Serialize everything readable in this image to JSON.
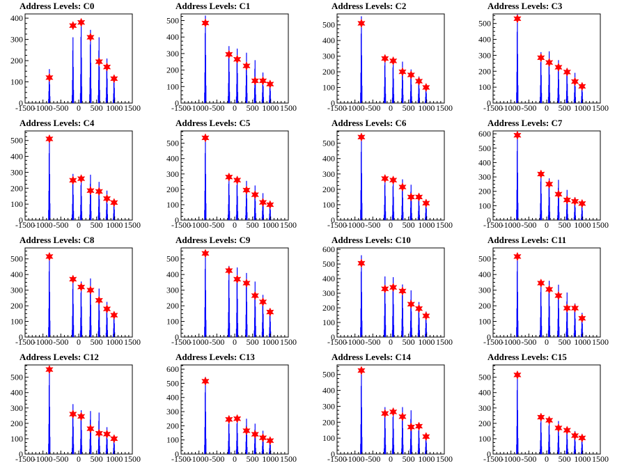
{
  "figure": {
    "background": "#ffffff",
    "hist_color": "#0000ff",
    "marker_color": "#ff0000"
  },
  "chart_data": [
    {
      "type": "bar",
      "title": "Address Levels: C0",
      "xlim": [
        -1500,
        1500
      ],
      "ylim": [
        0,
        420
      ],
      "xticks": [
        "-1500",
        "-1000",
        "-500",
        "0",
        "500",
        "1000",
        "1500"
      ],
      "yticks": [
        "0",
        "100",
        "200",
        "300",
        "400"
      ],
      "peaks": [
        {
          "x": -820,
          "y": 120,
          "h": 160
        },
        {
          "x": -160,
          "y": 365,
          "h": 310
        },
        {
          "x": 70,
          "y": 380,
          "h": 390
        },
        {
          "x": 330,
          "y": 310,
          "h": 345
        },
        {
          "x": 570,
          "y": 195,
          "h": 310
        },
        {
          "x": 790,
          "y": 170,
          "h": 210
        },
        {
          "x": 990,
          "y": 115,
          "h": 130
        }
      ]
    },
    {
      "type": "bar",
      "title": "Address Levels: C1",
      "xlim": [
        -1500,
        1500
      ],
      "ylim": [
        0,
        540
      ],
      "xticks": [
        "-1500",
        "-1000",
        "-500",
        "0",
        "500",
        "1000",
        "1500"
      ],
      "yticks": [
        "0",
        "100",
        "200",
        "300",
        "400",
        "500"
      ],
      "peaks": [
        {
          "x": -820,
          "y": 485,
          "h": 530
        },
        {
          "x": -160,
          "y": 295,
          "h": 345
        },
        {
          "x": 70,
          "y": 265,
          "h": 330
        },
        {
          "x": 330,
          "y": 225,
          "h": 305
        },
        {
          "x": 570,
          "y": 135,
          "h": 260
        },
        {
          "x": 790,
          "y": 135,
          "h": 185
        },
        {
          "x": 990,
          "y": 115,
          "h": 135
        }
      ]
    },
    {
      "type": "bar",
      "title": "Address Levels: C2",
      "xlim": [
        -1500,
        1500
      ],
      "ylim": [
        0,
        570
      ],
      "xticks": [
        "-1500",
        "-1000",
        "-500",
        "0",
        "500",
        "1000",
        "1500"
      ],
      "yticks": [
        "0",
        "100",
        "200",
        "300",
        "400",
        "500"
      ],
      "peaks": [
        {
          "x": -820,
          "y": 510,
          "h": 555
        },
        {
          "x": -160,
          "y": 285,
          "h": 300
        },
        {
          "x": 70,
          "y": 270,
          "h": 285
        },
        {
          "x": 330,
          "y": 200,
          "h": 265
        },
        {
          "x": 570,
          "y": 180,
          "h": 215
        },
        {
          "x": 790,
          "y": 140,
          "h": 170
        },
        {
          "x": 990,
          "y": 100,
          "h": 115
        }
      ]
    },
    {
      "type": "bar",
      "title": "Address Levels: C3",
      "xlim": [
        -1500,
        1500
      ],
      "ylim": [
        0,
        560
      ],
      "xticks": [
        "-1500",
        "-1000",
        "-500",
        "0",
        "500",
        "1000",
        "1500"
      ],
      "yticks": [
        "0",
        "100",
        "200",
        "300",
        "400",
        "500"
      ],
      "peaks": [
        {
          "x": -820,
          "y": 530,
          "h": 560
        },
        {
          "x": -160,
          "y": 285,
          "h": 320
        },
        {
          "x": 70,
          "y": 255,
          "h": 325
        },
        {
          "x": 330,
          "y": 225,
          "h": 270
        },
        {
          "x": 570,
          "y": 195,
          "h": 220
        },
        {
          "x": 790,
          "y": 135,
          "h": 190
        },
        {
          "x": 990,
          "y": 105,
          "h": 125
        }
      ]
    },
    {
      "type": "bar",
      "title": "Address Levels: C4",
      "xlim": [
        -1500,
        1500
      ],
      "ylim": [
        0,
        560
      ],
      "xticks": [
        "-1500",
        "-1000",
        "-500",
        "0",
        "500",
        "1000",
        "1500"
      ],
      "yticks": [
        "0",
        "100",
        "200",
        "300",
        "400",
        "500"
      ],
      "peaks": [
        {
          "x": -820,
          "y": 510,
          "h": 525
        },
        {
          "x": -160,
          "y": 250,
          "h": 290
        },
        {
          "x": 70,
          "y": 260,
          "h": 275
        },
        {
          "x": 330,
          "y": 185,
          "h": 285
        },
        {
          "x": 570,
          "y": 180,
          "h": 240
        },
        {
          "x": 790,
          "y": 135,
          "h": 185
        },
        {
          "x": 990,
          "y": 110,
          "h": 120
        }
      ]
    },
    {
      "type": "bar",
      "title": "Address Levels: C5",
      "xlim": [
        -1500,
        1500
      ],
      "ylim": [
        0,
        580
      ],
      "xticks": [
        "-1500",
        "-1000",
        "-500",
        "0",
        "500",
        "1000",
        "1500"
      ],
      "yticks": [
        "0",
        "100",
        "200",
        "300",
        "400",
        "500"
      ],
      "peaks": [
        {
          "x": -820,
          "y": 535,
          "h": 545
        },
        {
          "x": -160,
          "y": 280,
          "h": 295
        },
        {
          "x": 70,
          "y": 260,
          "h": 285
        },
        {
          "x": 330,
          "y": 195,
          "h": 255
        },
        {
          "x": 570,
          "y": 165,
          "h": 225
        },
        {
          "x": 790,
          "y": 115,
          "h": 175
        },
        {
          "x": 990,
          "y": 100,
          "h": 120
        }
      ]
    },
    {
      "type": "bar",
      "title": "Address Levels: C6",
      "xlim": [
        -1500,
        1500
      ],
      "ylim": [
        0,
        580
      ],
      "xticks": [
        "-1500",
        "-1000",
        "-500",
        "0",
        "500",
        "1000",
        "1500"
      ],
      "yticks": [
        "0",
        "100",
        "200",
        "300",
        "400",
        "500"
      ],
      "peaks": [
        {
          "x": -820,
          "y": 540,
          "h": 555
        },
        {
          "x": -160,
          "y": 270,
          "h": 285
        },
        {
          "x": 70,
          "y": 260,
          "h": 275
        },
        {
          "x": 330,
          "y": 215,
          "h": 265
        },
        {
          "x": 570,
          "y": 150,
          "h": 230
        },
        {
          "x": 790,
          "y": 150,
          "h": 170
        },
        {
          "x": 990,
          "y": 110,
          "h": 135
        }
      ]
    },
    {
      "type": "bar",
      "title": "Address Levels: C7",
      "xlim": [
        -1500,
        1500
      ],
      "ylim": [
        0,
        620
      ],
      "xticks": [
        "-1500",
        "-1000",
        "-500",
        "0",
        "500",
        "1000",
        "1500"
      ],
      "yticks": [
        "0",
        "100",
        "200",
        "300",
        "400",
        "500",
        "600"
      ],
      "peaks": [
        {
          "x": -820,
          "y": 590,
          "h": 600
        },
        {
          "x": -160,
          "y": 320,
          "h": 335
        },
        {
          "x": 70,
          "y": 250,
          "h": 290
        },
        {
          "x": 330,
          "y": 180,
          "h": 280
        },
        {
          "x": 570,
          "y": 140,
          "h": 210
        },
        {
          "x": 790,
          "y": 130,
          "h": 160
        },
        {
          "x": 990,
          "y": 115,
          "h": 120
        }
      ]
    },
    {
      "type": "bar",
      "title": "Address Levels: C8",
      "xlim": [
        -1500,
        1500
      ],
      "ylim": [
        0,
        570
      ],
      "xticks": [
        "-1500",
        "-1000",
        "-500",
        "0",
        "500",
        "1000",
        "1500"
      ],
      "yticks": [
        "0",
        "100",
        "200",
        "300",
        "400",
        "500"
      ],
      "peaks": [
        {
          "x": -820,
          "y": 515,
          "h": 525
        },
        {
          "x": -160,
          "y": 370,
          "h": 385
        },
        {
          "x": 70,
          "y": 320,
          "h": 355
        },
        {
          "x": 330,
          "y": 300,
          "h": 375
        },
        {
          "x": 570,
          "y": 235,
          "h": 310
        },
        {
          "x": 790,
          "y": 180,
          "h": 225
        },
        {
          "x": 990,
          "y": 140,
          "h": 160
        }
      ]
    },
    {
      "type": "bar",
      "title": "Address Levels: C9",
      "xlim": [
        -1500,
        1500
      ],
      "ylim": [
        0,
        570
      ],
      "xticks": [
        "-1500",
        "-1000",
        "-500",
        "0",
        "500",
        "1000",
        "1500"
      ],
      "yticks": [
        "0",
        "100",
        "200",
        "300",
        "400",
        "500"
      ],
      "peaks": [
        {
          "x": -820,
          "y": 535,
          "h": 545
        },
        {
          "x": -160,
          "y": 425,
          "h": 455
        },
        {
          "x": 70,
          "y": 370,
          "h": 445
        },
        {
          "x": 330,
          "y": 345,
          "h": 410
        },
        {
          "x": 570,
          "y": 265,
          "h": 355
        },
        {
          "x": 790,
          "y": 225,
          "h": 270
        },
        {
          "x": 990,
          "y": 160,
          "h": 180
        }
      ]
    },
    {
      "type": "bar",
      "title": "Address Levels: C10",
      "xlim": [
        -1500,
        1500
      ],
      "ylim": [
        0,
        610
      ],
      "xticks": [
        "-1500",
        "-1000",
        "-500",
        "0",
        "500",
        "1000",
        "1500"
      ],
      "yticks": [
        "0",
        "100",
        "200",
        "300",
        "400",
        "500",
        "600"
      ],
      "peaks": [
        {
          "x": -820,
          "y": 505,
          "h": 560
        },
        {
          "x": -160,
          "y": 330,
          "h": 415
        },
        {
          "x": 70,
          "y": 340,
          "h": 410
        },
        {
          "x": 330,
          "y": 315,
          "h": 360
        },
        {
          "x": 570,
          "y": 225,
          "h": 320
        },
        {
          "x": 790,
          "y": 195,
          "h": 240
        },
        {
          "x": 990,
          "y": 145,
          "h": 175
        }
      ]
    },
    {
      "type": "bar",
      "title": "Address Levels: C11",
      "xlim": [
        -1500,
        1500
      ],
      "ylim": [
        0,
        570
      ],
      "xticks": [
        "-1500",
        "-1000",
        "-500",
        "0",
        "500",
        "1000",
        "1500"
      ],
      "yticks": [
        "0",
        "100",
        "200",
        "300",
        "400",
        "500"
      ],
      "peaks": [
        {
          "x": -820,
          "y": 515,
          "h": 525
        },
        {
          "x": -160,
          "y": 345,
          "h": 360
        },
        {
          "x": 70,
          "y": 305,
          "h": 360
        },
        {
          "x": 330,
          "y": 265,
          "h": 335
        },
        {
          "x": 570,
          "y": 185,
          "h": 285
        },
        {
          "x": 790,
          "y": 185,
          "h": 215
        },
        {
          "x": 990,
          "y": 120,
          "h": 155
        }
      ]
    },
    {
      "type": "bar",
      "title": "Address Levels: C12",
      "xlim": [
        -1500,
        1500
      ],
      "ylim": [
        0,
        580
      ],
      "xticks": [
        "-1500",
        "-1000",
        "-500",
        "0",
        "500",
        "1000",
        "1500"
      ],
      "yticks": [
        "0",
        "100",
        "200",
        "300",
        "400",
        "500"
      ],
      "peaks": [
        {
          "x": -820,
          "y": 550,
          "h": 560
        },
        {
          "x": -160,
          "y": 260,
          "h": 325
        },
        {
          "x": 70,
          "y": 245,
          "h": 285
        },
        {
          "x": 330,
          "y": 165,
          "h": 280
        },
        {
          "x": 570,
          "y": 135,
          "h": 270
        },
        {
          "x": 790,
          "y": 130,
          "h": 175
        },
        {
          "x": 990,
          "y": 100,
          "h": 115
        }
      ]
    },
    {
      "type": "bar",
      "title": "Address Levels: C13",
      "xlim": [
        -1500,
        1500
      ],
      "ylim": [
        0,
        630
      ],
      "xticks": [
        "-1500",
        "-1000",
        "-500",
        "0",
        "500",
        "1000",
        "1500"
      ],
      "yticks": [
        "0",
        "100",
        "200",
        "300",
        "400",
        "500",
        "600"
      ],
      "peaks": [
        {
          "x": -820,
          "y": 515,
          "h": 545
        },
        {
          "x": -160,
          "y": 245,
          "h": 265
        },
        {
          "x": 70,
          "y": 250,
          "h": 270
        },
        {
          "x": 330,
          "y": 165,
          "h": 250
        },
        {
          "x": 570,
          "y": 140,
          "h": 215
        },
        {
          "x": 790,
          "y": 115,
          "h": 165
        },
        {
          "x": 990,
          "y": 95,
          "h": 120
        }
      ]
    },
    {
      "type": "bar",
      "title": "Address Levels: C14",
      "xlim": [
        -1500,
        1500
      ],
      "ylim": [
        0,
        560
      ],
      "xticks": [
        "-1500",
        "-1000",
        "-500",
        "0",
        "500",
        "1000",
        "1500"
      ],
      "yticks": [
        "0",
        "100",
        "200",
        "300",
        "400",
        "500"
      ],
      "peaks": [
        {
          "x": -820,
          "y": 525,
          "h": 535
        },
        {
          "x": -160,
          "y": 255,
          "h": 295
        },
        {
          "x": 70,
          "y": 265,
          "h": 290
        },
        {
          "x": 330,
          "y": 235,
          "h": 295
        },
        {
          "x": 570,
          "y": 170,
          "h": 275
        },
        {
          "x": 790,
          "y": 175,
          "h": 185
        },
        {
          "x": 990,
          "y": 110,
          "h": 130
        }
      ]
    },
    {
      "type": "bar",
      "title": "Address Levels: C15",
      "xlim": [
        -1500,
        1500
      ],
      "ylim": [
        0,
        580
      ],
      "xticks": [
        "-1500",
        "-1000",
        "-500",
        "0",
        "500",
        "1000",
        "1500"
      ],
      "yticks": [
        "0",
        "100",
        "200",
        "300",
        "400",
        "500"
      ],
      "peaks": [
        {
          "x": -820,
          "y": 515,
          "h": 520
        },
        {
          "x": -160,
          "y": 240,
          "h": 255
        },
        {
          "x": 70,
          "y": 220,
          "h": 230
        },
        {
          "x": 330,
          "y": 170,
          "h": 215
        },
        {
          "x": 570,
          "y": 155,
          "h": 175
        },
        {
          "x": 790,
          "y": 120,
          "h": 150
        },
        {
          "x": 990,
          "y": 105,
          "h": 115
        }
      ]
    }
  ]
}
